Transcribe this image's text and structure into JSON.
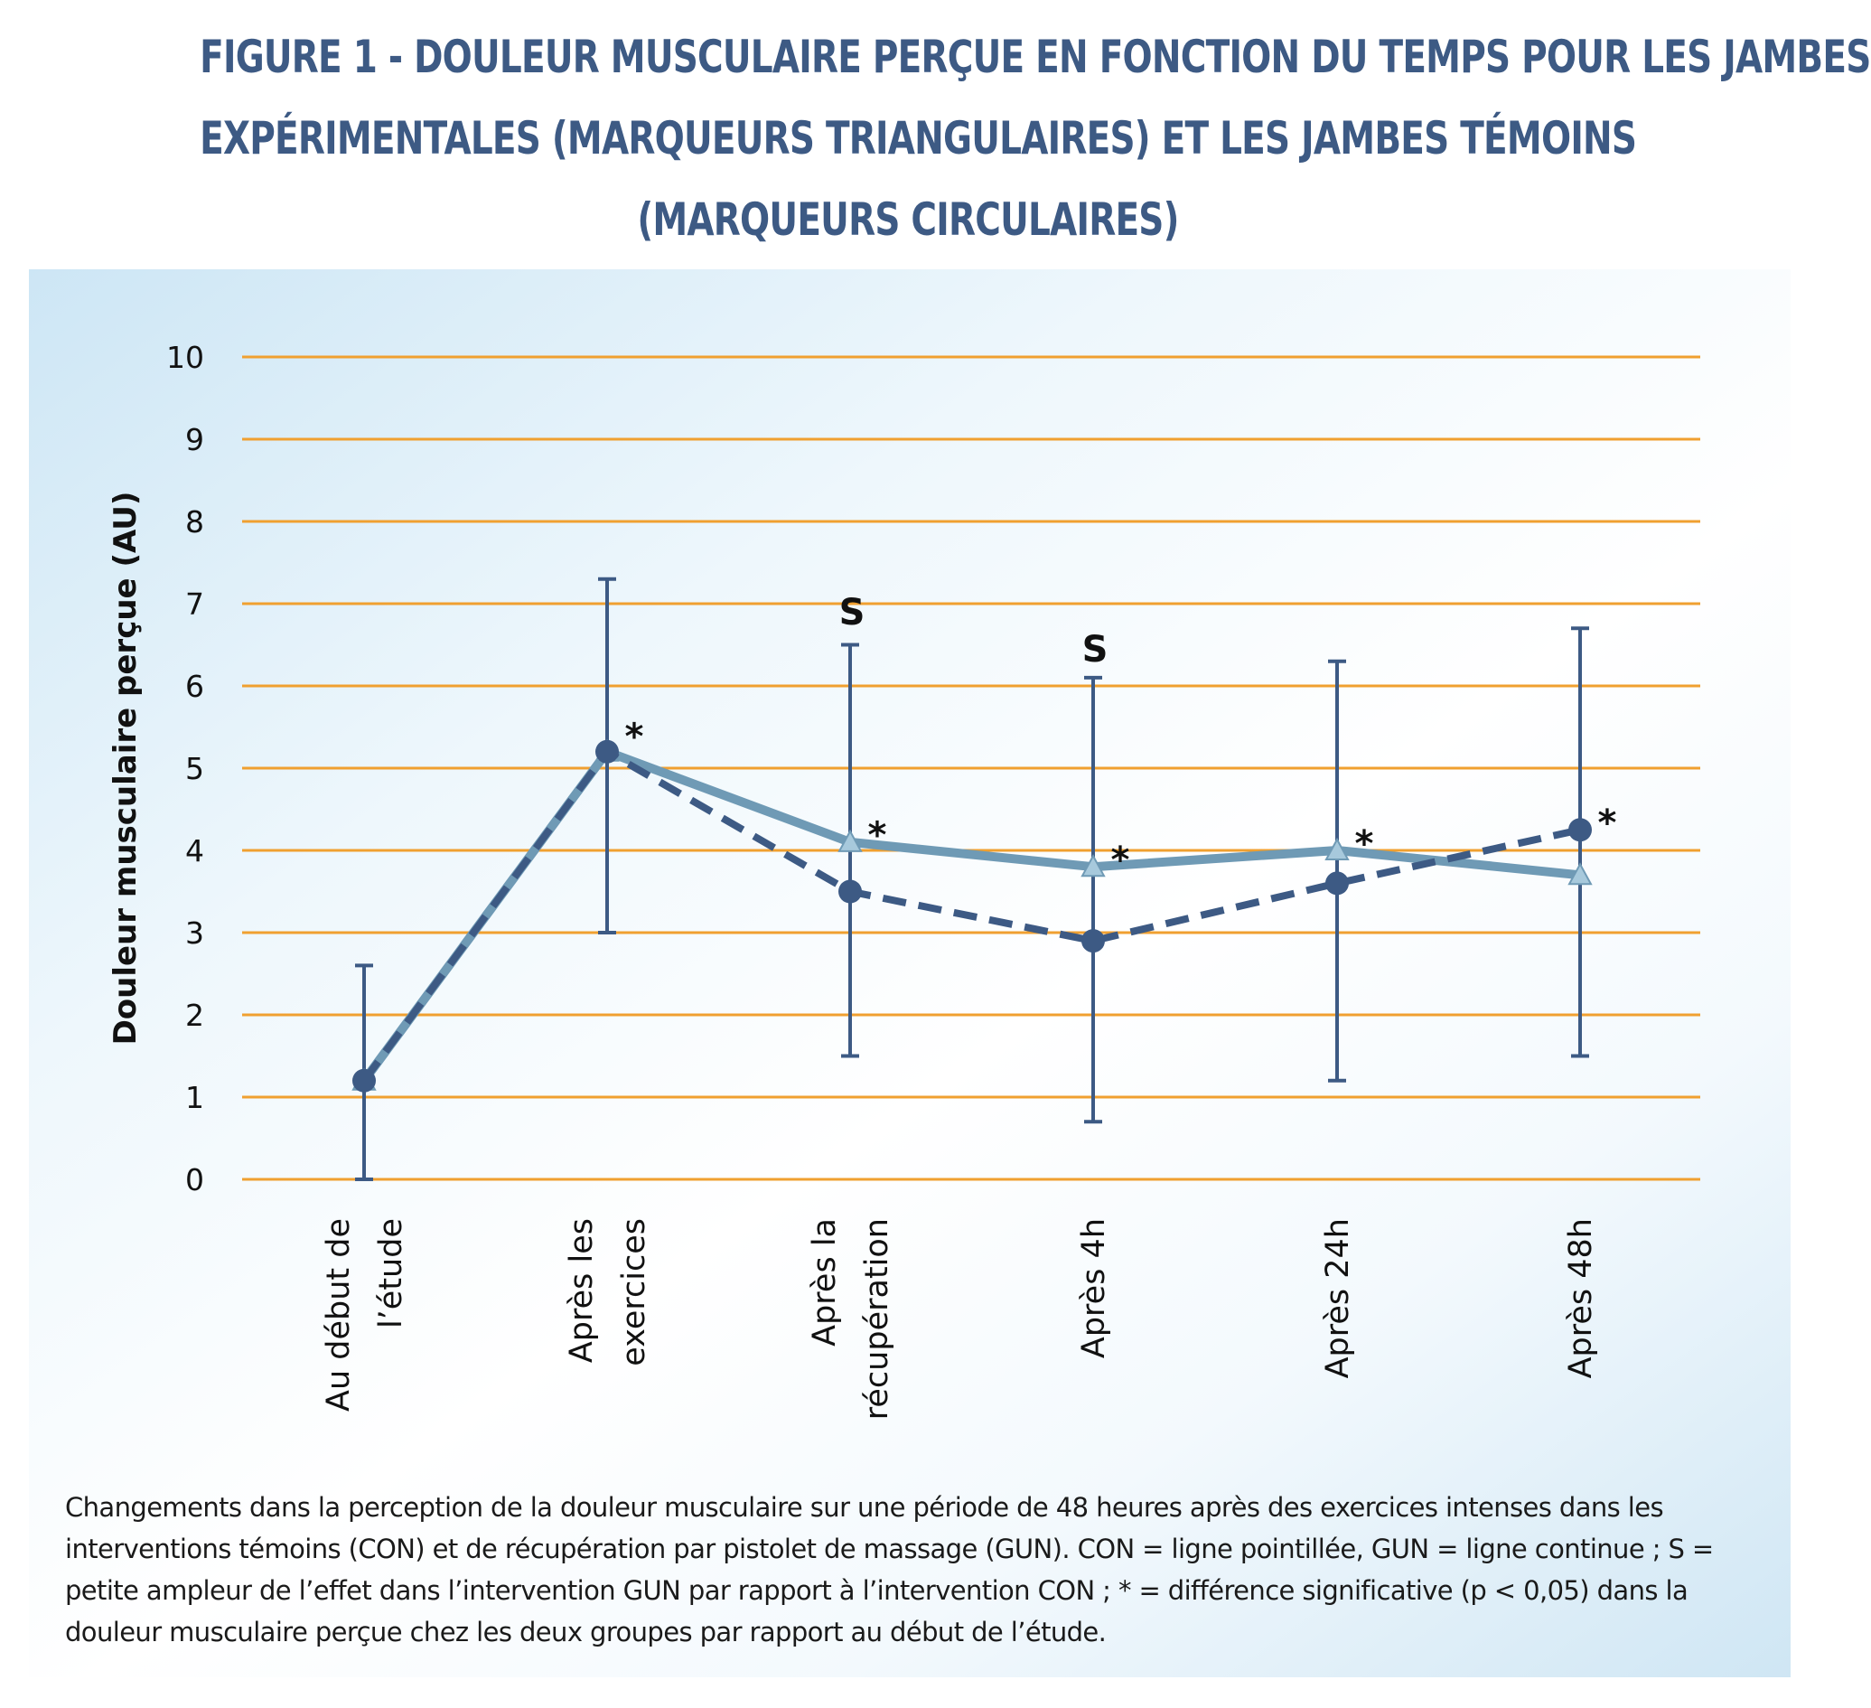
{
  "title_lines": [
    "FIGURE 1 - DOULEUR MUSCULAIRE PERÇUE EN FONCTION DU TEMPS POUR LES JAMBES",
    "EXPÉRIMENTALES (MARQUEURS TRIANGULAIRES) ET LES JAMBES TÉMOINS",
    "(MARQUEURS CIRCULAIRES)"
  ],
  "caption": "Changements dans la perception de la douleur musculaire sur une période de 48 heures après des exercices intenses dans les interventions témoins (CON) et de récupération par pistolet de massage (GUN). CON = ligne pointillée, GUN = ligne continue ; S = petite ampleur de l’effet dans l’intervention GUN par rapport à l’intervention CON ; * = différence significative (p < 0,05) dans la douleur musculaire perçue chez les deux groupes par rapport au début de l’étude.",
  "colors": {
    "title": "#3d5a84",
    "grid": "#f0a030",
    "gun_line": "#6f9ab5",
    "gun_marker": "#a7c9dc",
    "con_line": "#3d5a84",
    "error_bar": "#3d5a84"
  },
  "chart_data": {
    "type": "line",
    "ylabel": "Douleur musculaire perçue (AU)",
    "xlabel": "",
    "ylim": [
      0,
      10
    ],
    "yticks": [
      "0",
      "1",
      "2",
      "3",
      "4",
      "5",
      "6",
      "7",
      "8",
      "9",
      "10"
    ],
    "grid": true,
    "categories": [
      [
        "Au début de",
        "l’étude"
      ],
      [
        "Après les",
        "exercices"
      ],
      [
        "Après la",
        "récupération"
      ],
      [
        "Après 4h"
      ],
      [
        "Après 24h"
      ],
      [
        "Après 48h"
      ]
    ],
    "series": [
      {
        "marker": "triangle",
        "style": "solid",
        "values": [
          1.2,
          5.2,
          4.1,
          3.8,
          4.0,
          3.7
        ]
      },
      {
        "marker": "circle",
        "style": "dashed",
        "values": [
          1.2,
          5.2,
          3.5,
          2.9,
          3.6,
          4.25
        ],
        "error_low": [
          0.0,
          3.0,
          1.5,
          0.7,
          1.2,
          1.5
        ],
        "error_high": [
          2.6,
          7.3,
          6.5,
          6.1,
          6.3,
          6.7
        ]
      }
    ],
    "annotations": [
      {
        "text": "*",
        "index": 1,
        "y": 5.5
      },
      {
        "text": "*",
        "index": 2,
        "y": 4.3
      },
      {
        "text": "*",
        "index": 3,
        "y": 4.0
      },
      {
        "text": "*",
        "index": 4,
        "y": 4.2
      },
      {
        "text": "*",
        "index": 5,
        "y": 4.45
      },
      {
        "text": "S",
        "index": 2,
        "y": 6.9
      },
      {
        "text": "S",
        "index": 3,
        "y": 6.45
      }
    ]
  }
}
